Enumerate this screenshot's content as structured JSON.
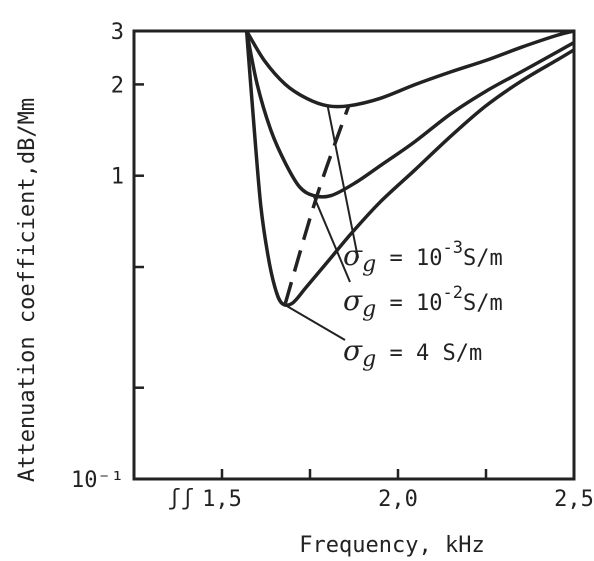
{
  "chart_data": {
    "type": "line",
    "xlabel": "Frequency, kHz",
    "ylabel": "Attenuation coefficient,dB/Mm",
    "x_scale": "linear",
    "y_scale": "log",
    "xlim": [
      1.25,
      2.5
    ],
    "ylim": [
      0.1,
      3
    ],
    "x_ticks": [
      1.5,
      1.75,
      2.0,
      2.25,
      2.5
    ],
    "x_tick_labels": [
      "1,5",
      "",
      "2,0",
      "",
      "2,5"
    ],
    "y_ticks": [
      0.1,
      0.2,
      0.5,
      1,
      2,
      3
    ],
    "y_tick_labels": [
      "10⁻¹",
      "",
      "",
      "1",
      "2",
      "3"
    ],
    "axis_break_marker": "ʃʃ",
    "grid": false,
    "series": [
      {
        "label": "σg = 10⁻³S/m",
        "sigma_base": "10",
        "sigma_exp": "-3",
        "sigma_unit": "S/m",
        "x": [
          1.57,
          1.62,
          1.68,
          1.74,
          1.8,
          1.86,
          1.95,
          2.05,
          2.15,
          2.25,
          2.35,
          2.45,
          2.5
        ],
        "y": [
          3.0,
          2.4,
          2.0,
          1.8,
          1.7,
          1.7,
          1.8,
          2.0,
          2.2,
          2.4,
          2.65,
          2.9,
          3.0
        ]
      },
      {
        "label": "σg = 10⁻²S/m",
        "sigma_base": "10",
        "sigma_exp": "-2",
        "sigma_unit": "S/m",
        "x": [
          1.57,
          1.6,
          1.64,
          1.68,
          1.72,
          1.76,
          1.81,
          1.88,
          1.96,
          2.05,
          2.15,
          2.25,
          2.35,
          2.45,
          2.5
        ],
        "y": [
          3.0,
          2.0,
          1.4,
          1.1,
          0.92,
          0.86,
          0.86,
          0.95,
          1.1,
          1.3,
          1.6,
          1.9,
          2.2,
          2.55,
          2.75
        ]
      },
      {
        "label": "σg = 4 S/m",
        "sigma_value": "4",
        "sigma_unit": "S/m",
        "x": [
          1.57,
          1.59,
          1.61,
          1.63,
          1.65,
          1.67,
          1.7,
          1.74,
          1.8,
          1.87,
          1.95,
          2.05,
          2.15,
          2.25,
          2.35,
          2.45,
          2.5
        ],
        "y": [
          3.0,
          1.5,
          0.8,
          0.55,
          0.43,
          0.38,
          0.38,
          0.43,
          0.52,
          0.65,
          0.82,
          1.05,
          1.35,
          1.7,
          2.05,
          2.4,
          2.6
        ]
      }
    ],
    "dashed_locus_of_minima": {
      "x": [
        1.68,
        1.77,
        1.86
      ],
      "y": [
        0.38,
        0.86,
        1.7
      ]
    }
  }
}
